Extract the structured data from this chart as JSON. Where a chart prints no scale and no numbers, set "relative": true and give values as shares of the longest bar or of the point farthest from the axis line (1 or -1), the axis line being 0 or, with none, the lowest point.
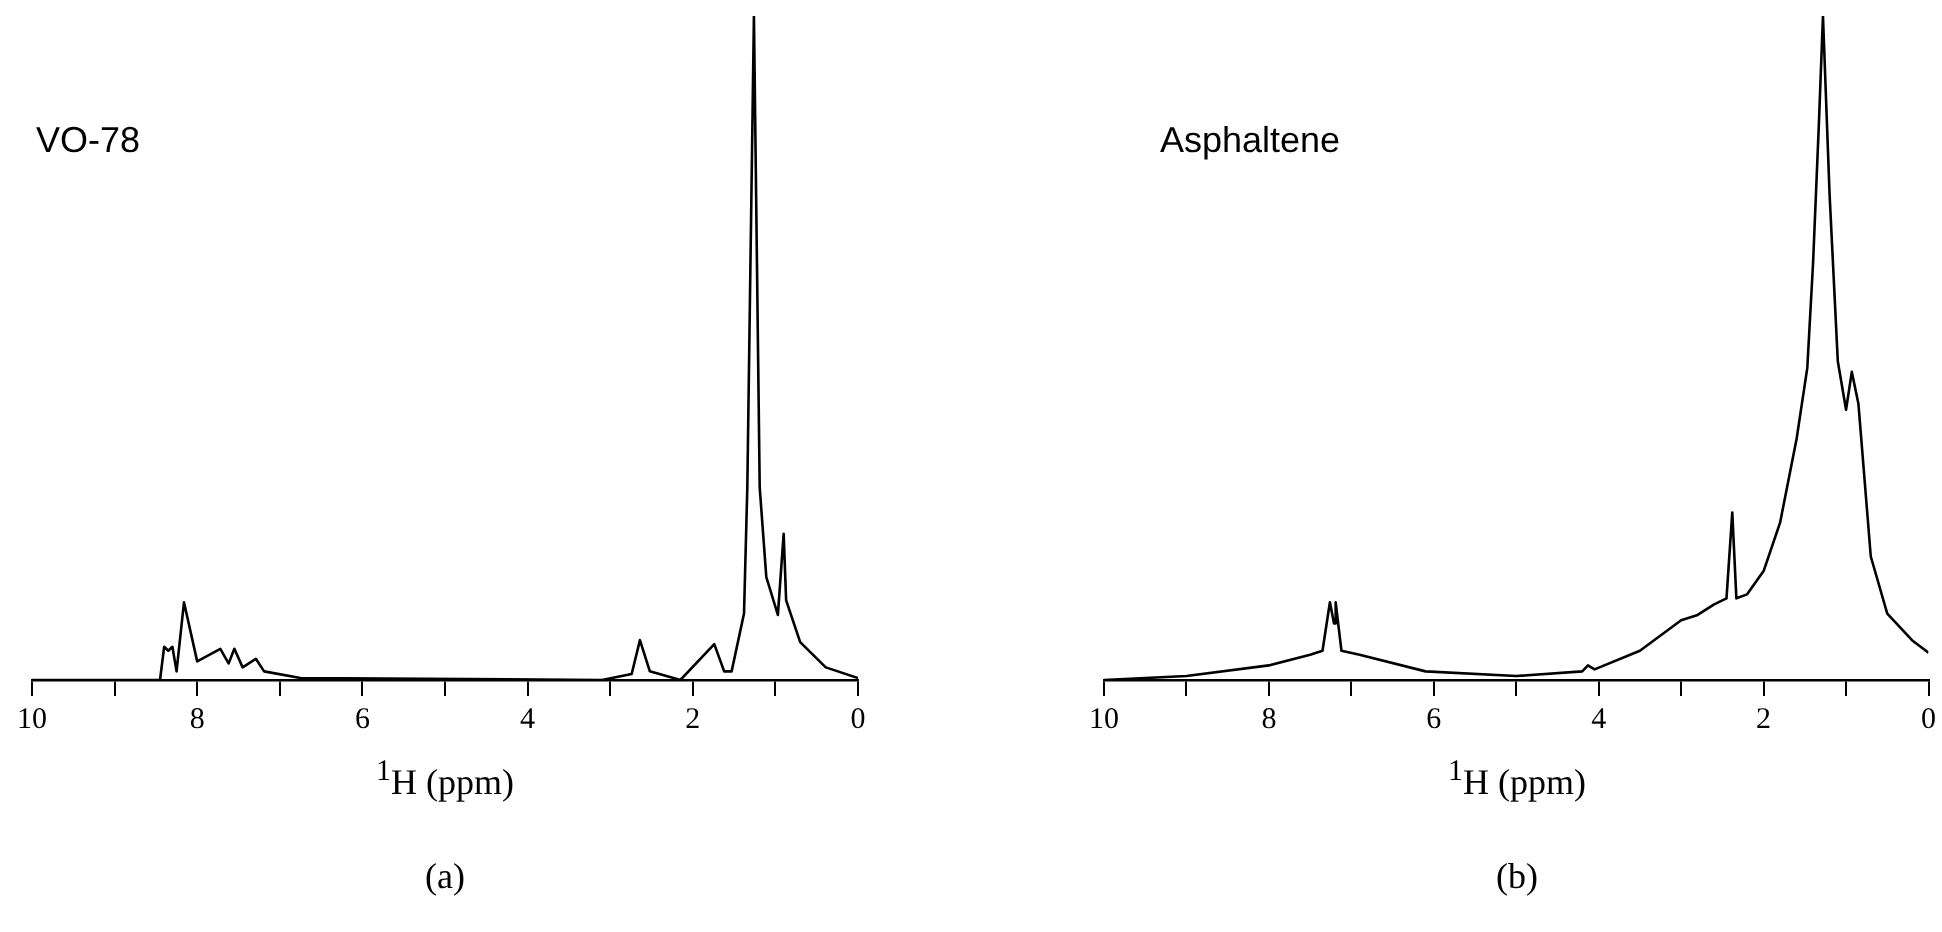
{
  "chart_data": [
    {
      "type": "line",
      "relative": true,
      "xlabel": "$^{1}$H (ppm)",
      "annotations": [
        "VO-78",
        "(a)"
      ],
      "xlim": [
        10,
        0
      ],
      "xticks": [
        10,
        {
          "value": 9,
          "label": null
        },
        8,
        {
          "value": 7,
          "label": null
        },
        6,
        {
          "value": 5,
          "label": null
        },
        4,
        {
          "value": 3,
          "label": null
        },
        2,
        {
          "value": 1,
          "label": null
        },
        0
      ],
      "x": [
        10,
        8.45,
        8.4,
        8.35,
        8.3,
        8.25,
        8.16,
        8.0,
        7.72,
        7.62,
        7.55,
        7.45,
        7.29,
        7.19,
        6.75,
        3.1,
        2.74,
        2.64,
        2.52,
        2.15,
        1.74,
        1.62,
        1.53,
        1.38,
        1.34,
        1.31,
        1.26,
        1.19,
        1.11,
        0.97,
        0.9,
        0.87,
        0.7,
        0.39,
        0
      ],
      "series": [
        {
          "color": "#000000",
          "values": [
            0,
            0,
            0.05,
            0.044,
            0.05,
            0.013,
            0.117,
            0.028,
            0.047,
            0.025,
            0.047,
            0.019,
            0.032,
            0.013,
            0.003,
            0,
            0.009,
            0.06,
            0.013,
            0,
            0.054,
            0.013,
            0.013,
            0.1,
            0.29,
            0.557,
            1,
            0.29,
            0.155,
            0.098,
            0.22,
            0.12,
            0.057,
            0.019,
            0.003
          ]
        }
      ]
    },
    {
      "type": "line",
      "relative": true,
      "xlabel": "$^{1}$H (ppm)",
      "annotations": [
        "Asphaltene",
        "(b)"
      ],
      "xlim": [
        10,
        0
      ],
      "xticks": [
        10,
        {
          "value": 9,
          "label": null
        },
        8,
        {
          "value": 7,
          "label": null
        },
        6,
        {
          "value": 5,
          "label": null
        },
        4,
        {
          "value": 3,
          "label": null
        },
        2,
        {
          "value": 1,
          "label": null
        },
        0
      ],
      "x": [
        10,
        9,
        8,
        7.5,
        7.35,
        7.26,
        7.21,
        7.19,
        7.12,
        6.9,
        6.1,
        5,
        4.2,
        4.13,
        4.05,
        3.5,
        3,
        2.8,
        2.6,
        2.45,
        2.38,
        2.33,
        2.2,
        2,
        1.8,
        1.6,
        1.47,
        1.4,
        1.33,
        1.28,
        1.2,
        1.1,
        1,
        0.93,
        0.85,
        0.7,
        0.5,
        0.2,
        0
      ],
      "series": [
        {
          "color": "#000000",
          "values": [
            0,
            0.006,
            0.022,
            0.038,
            0.044,
            0.117,
            0.085,
            0.117,
            0.044,
            0.038,
            0.013,
            0.006,
            0.013,
            0.022,
            0.016,
            0.044,
            0.09,
            0.098,
            0.114,
            0.123,
            0.252,
            0.123,
            0.129,
            0.164,
            0.237,
            0.363,
            0.47,
            0.628,
            0.836,
            1,
            0.732,
            0.48,
            0.407,
            0.464,
            0.416,
            0.186,
            0.1,
            0.06,
            0.041
          ]
        }
      ]
    }
  ]
}
